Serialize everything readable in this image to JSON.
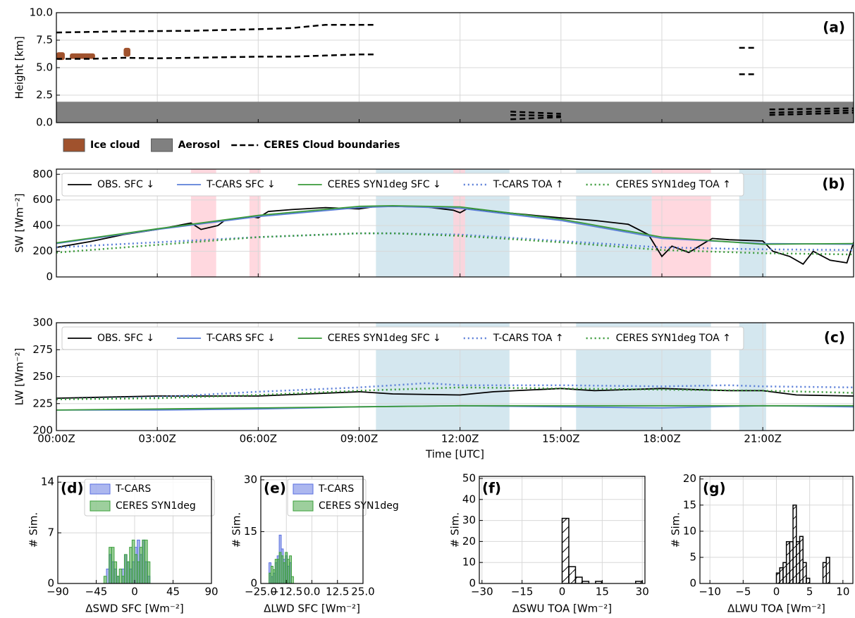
{
  "chart_data": [
    {
      "type": "profile",
      "panel_label": "(a)",
      "ylabel": "Height [km]",
      "xlim": [
        0,
        23.7
      ],
      "xticks": [
        0,
        3,
        6,
        9,
        12,
        15,
        18,
        21
      ],
      "ylim": [
        0,
        10
      ],
      "yticks": [
        {
          "value": 0,
          "label": "0.0"
        },
        2.5,
        {
          "value": 5,
          "label": "5.0"
        },
        7.5,
        {
          "value": 10,
          "label": "10.0"
        }
      ],
      "grid": true,
      "legend": [
        {
          "name": "Ice cloud",
          "color": "#a0522d"
        },
        {
          "name": "Aerosol",
          "color": "#808080"
        },
        {
          "name": "CERES Cloud boundaries",
          "color": "#000000"
        }
      ],
      "ice_cloud": [
        {
          "x": [
            0,
            0.25
          ],
          "y": [
            5.7,
            6.4
          ]
        },
        {
          "x": [
            0.4,
            1.15
          ],
          "y": [
            5.8,
            6.3
          ]
        },
        {
          "x": [
            2.0,
            2.2
          ],
          "y": [
            6.0,
            6.8
          ]
        }
      ],
      "aerosol": {
        "x": [
          0,
          23.7
        ],
        "y": [
          0,
          1.9
        ]
      },
      "boundaries": [
        {
          "x": [
            0,
            2,
            4,
            6,
            7,
            8,
            9,
            9.5
          ],
          "values": [
            8.2,
            8.3,
            8.35,
            8.5,
            8.6,
            8.9,
            8.9,
            8.9
          ]
        },
        {
          "x": [
            0,
            1,
            2,
            3,
            4,
            5,
            6,
            7,
            8,
            9,
            9.5
          ],
          "values": [
            5.8,
            5.8,
            5.9,
            5.85,
            5.9,
            5.95,
            6.0,
            6.0,
            6.1,
            6.2,
            6.2
          ]
        },
        {
          "x": [
            20.3,
            20.8
          ],
          "values": [
            6.8,
            6.8
          ]
        },
        {
          "x": [
            20.3,
            20.8
          ],
          "values": [
            4.4,
            4.4
          ]
        },
        {
          "x": [
            13.5,
            15
          ],
          "values": [
            1.0,
            0.8
          ]
        },
        {
          "x": [
            13.5,
            15
          ],
          "values": [
            0.7,
            0.6
          ]
        },
        {
          "x": [
            13.5,
            15
          ],
          "values": [
            0.3,
            0.5
          ]
        },
        {
          "x": [
            21.2,
            23.7
          ],
          "values": [
            1.2,
            1.3
          ]
        },
        {
          "x": [
            21.2,
            23.7
          ],
          "values": [
            0.9,
            1.1
          ]
        },
        {
          "x": [
            21.2,
            23.7
          ],
          "values": [
            0.7,
            0.9
          ]
        }
      ]
    },
    {
      "type": "line",
      "panel_label": "(b)",
      "ylabel": "SW [Wm⁻²]",
      "xlim": [
        0,
        23.7
      ],
      "xticks": [
        0,
        3,
        6,
        9,
        12,
        15,
        18,
        21
      ],
      "ylim": [
        0,
        840
      ],
      "yticks": [
        0,
        200,
        400,
        600,
        800
      ],
      "grid": true,
      "legend": "upper left",
      "shaded": [
        {
          "x": [
            4.0,
            4.75
          ],
          "color": "#ffd1d9"
        },
        {
          "x": [
            5.74,
            6.07
          ],
          "color": "#ffd1d9"
        },
        {
          "x": [
            9.5,
            13.47
          ],
          "color": "#cde3ec"
        },
        {
          "x": [
            11.8,
            12.15
          ],
          "color": "#ffd1d9"
        },
        {
          "x": [
            15.45,
            17.7
          ],
          "color": "#cde3ec"
        },
        {
          "x": [
            17.7,
            19.46
          ],
          "color": "#ffd1d9"
        },
        {
          "x": [
            20.3,
            21.1
          ],
          "color": "#cde3ec"
        }
      ],
      "series": [
        {
          "name": "OBS. SFC ↓",
          "color": "#000000",
          "style": "solid",
          "x": [
            0,
            1,
            2,
            3,
            4,
            4.3,
            4.8,
            5,
            5.8,
            6,
            6.3,
            7,
            8,
            9,
            9.5,
            10,
            11,
            11.8,
            12,
            12.2,
            13,
            14,
            15,
            16,
            17,
            17.6,
            18,
            18.3,
            18.8,
            19.3,
            19.5,
            20,
            21,
            21.3,
            21.8,
            22.2,
            22.5,
            23,
            23.5,
            23.7
          ],
          "values": [
            230,
            275,
            330,
            370,
            420,
            370,
            400,
            440,
            470,
            460,
            510,
            525,
            540,
            530,
            550,
            550,
            545,
            520,
            500,
            530,
            510,
            485,
            460,
            440,
            410,
            330,
            160,
            240,
            190,
            270,
            300,
            290,
            280,
            200,
            160,
            100,
            200,
            130,
            110,
            270
          ]
        },
        {
          "name": "T-CARS SFC ↓",
          "color": "#5b7fd8",
          "style": "solid",
          "x": [
            0,
            3,
            6,
            9,
            10,
            12,
            15,
            18,
            21,
            23.7
          ],
          "values": [
            260,
            370,
            470,
            540,
            550,
            535,
            440,
            300,
            260,
            255
          ]
        },
        {
          "name": "CERES SYN1deg SFC ↓",
          "color": "#3a9a3a",
          "style": "solid",
          "x": [
            0,
            3,
            6,
            9,
            10,
            12,
            15,
            18,
            21,
            23.7
          ],
          "values": [
            265,
            375,
            480,
            550,
            555,
            545,
            450,
            310,
            255,
            260
          ]
        },
        {
          "name": "T-CARS TOA ↑",
          "color": "#5b7fd8",
          "style": "dotted",
          "x": [
            0,
            3,
            6,
            9,
            10,
            12,
            15,
            18,
            21,
            23.7
          ],
          "values": [
            230,
            270,
            310,
            340,
            340,
            330,
            280,
            230,
            215,
            210
          ]
        },
        {
          "name": "CERES SYN1deg TOA ↑",
          "color": "#3a9a3a",
          "style": "dotted",
          "x": [
            0,
            3,
            6,
            9,
            10,
            12,
            15,
            18,
            21,
            23.7
          ],
          "values": [
            190,
            250,
            310,
            340,
            340,
            320,
            270,
            210,
            185,
            175
          ]
        }
      ]
    },
    {
      "type": "line",
      "panel_label": "(c)",
      "ylabel": "LW [Wm⁻²]",
      "xlabel": "Time [UTC]",
      "xlim": [
        0,
        23.7
      ],
      "xticks": [
        {
          "value": 0,
          "label": "00:00Z"
        },
        {
          "value": 3,
          "label": "03:00Z"
        },
        {
          "value": 6,
          "label": "06:00Z"
        },
        {
          "value": 9,
          "label": "09:00Z"
        },
        {
          "value": 12,
          "label": "12:00Z"
        },
        {
          "value": 15,
          "label": "15:00Z"
        },
        {
          "value": 18,
          "label": "18:00Z"
        },
        {
          "value": 21,
          "label": "21:00Z"
        }
      ],
      "ylim": [
        200,
        300
      ],
      "yticks": [
        200,
        225,
        250,
        275,
        300
      ],
      "grid": true,
      "legend": "upper left",
      "shaded": [
        {
          "x": [
            9.5,
            13.47
          ],
          "color": "#cde3ec"
        },
        {
          "x": [
            15.45,
            19.46
          ],
          "color": "#cde3ec"
        },
        {
          "x": [
            20.3,
            21.1
          ],
          "color": "#cde3ec"
        }
      ],
      "series": [
        {
          "name": "OBS. SFC ↓",
          "color": "#000000",
          "style": "solid",
          "x": [
            0,
            3,
            6,
            9,
            10,
            12,
            13,
            15,
            16,
            18,
            20,
            21,
            22,
            23.7
          ],
          "values": [
            230,
            232,
            232,
            236,
            234,
            233,
            236,
            239,
            237,
            239,
            237,
            237,
            233,
            232
          ]
        },
        {
          "name": "T-CARS SFC ↓",
          "color": "#5b7fd8",
          "style": "solid",
          "x": [
            0,
            3,
            6,
            9,
            12,
            15,
            18,
            21,
            23.7
          ],
          "values": [
            219,
            219,
            220,
            222,
            223,
            222,
            221,
            223,
            222
          ]
        },
        {
          "name": "CERES SYN1deg SFC ↓",
          "color": "#3a9a3a",
          "style": "solid",
          "x": [
            0,
            3,
            6,
            9,
            12,
            15,
            18,
            21,
            23.7
          ],
          "values": [
            219,
            220,
            221,
            222,
            223,
            223,
            223,
            223,
            223
          ]
        },
        {
          "name": "T-CARS TOA ↑",
          "color": "#5b7fd8",
          "style": "dotted",
          "x": [
            0,
            3,
            6,
            9,
            11,
            12,
            15,
            18,
            20,
            21,
            23.7
          ],
          "values": [
            229,
            231,
            236,
            240,
            244,
            242,
            242,
            241,
            242,
            241,
            240
          ]
        },
        {
          "name": "CERES SYN1deg TOA ↑",
          "color": "#3a9a3a",
          "style": "dotted",
          "x": [
            0,
            3,
            6,
            9,
            11,
            12,
            15,
            18,
            21,
            23.7
          ],
          "values": [
            229,
            230,
            233,
            237,
            239,
            240,
            239,
            238,
            237,
            235
          ]
        }
      ]
    },
    {
      "type": "histogram",
      "panel_label": "(d)",
      "ylabel": "# Sim.",
      "xlabel": "ΔSWD SFC [Wm⁻²]",
      "xlim": [
        -90,
        90
      ],
      "xticks": [
        {
          "value": -90,
          "label": "−90"
        },
        {
          "value": -45,
          "label": "−45"
        },
        0,
        45,
        90
      ],
      "ylim": [
        0,
        14.8
      ],
      "yticks": [
        0,
        7,
        14
      ],
      "grid": true,
      "legend": "upper center",
      "bins": [
        -36,
        -33,
        -30,
        -27,
        -24,
        -21,
        -18,
        -15,
        -12,
        -9,
        -6,
        -3,
        0,
        3,
        6,
        9,
        12,
        15,
        18,
        21
      ],
      "series": [
        {
          "name": "T-CARS",
          "color": "#5a6fe0",
          "values": [
            0,
            2,
            4,
            3,
            2,
            1,
            0,
            2,
            4,
            3,
            2,
            3,
            5,
            6,
            4,
            6,
            3,
            1,
            0
          ]
        },
        {
          "name": "CERES SYN1deg",
          "color": "#3ca03c",
          "values": [
            1,
            0,
            5,
            5,
            3,
            1,
            2,
            1,
            4,
            3,
            5,
            6,
            4,
            3,
            5,
            6,
            6,
            3,
            0
          ]
        }
      ]
    },
    {
      "type": "histogram",
      "panel_label": "(e)",
      "ylabel": "# Sim.",
      "xlabel": "ΔLWD SFC [Wm⁻²]",
      "xlim": [
        -25,
        25
      ],
      "xticks": [
        {
          "value": -25,
          "label": "−25.0"
        },
        {
          "value": -12.5,
          "label": "−12.5"
        },
        {
          "value": 0,
          "label": "0.0"
        },
        12.5,
        {
          "value": 25,
          "label": "25.0"
        }
      ],
      "ylim": [
        0,
        31
      ],
      "yticks": [
        0,
        15,
        30
      ],
      "grid": true,
      "legend": "upper center",
      "bins": [
        -21,
        -20,
        -19,
        -18,
        -17,
        -16,
        -15,
        -14,
        -13,
        -12,
        -11,
        -10,
        -9,
        -8
      ],
      "series": [
        {
          "name": "T-CARS",
          "color": "#5a6fe0",
          "values": [
            6,
            2,
            3,
            6,
            8,
            14,
            10,
            7,
            8,
            5,
            6,
            0,
            0
          ]
        },
        {
          "name": "CERES SYN1deg",
          "color": "#3ca03c",
          "values": [
            3,
            5,
            4,
            7,
            7,
            9,
            8,
            6,
            9,
            7,
            8,
            2,
            0
          ]
        }
      ]
    },
    {
      "type": "histogram",
      "panel_label": "(f)",
      "ylabel": "# Sim.",
      "xlabel": "ΔSWU TOA [Wm⁻²]",
      "xlim": [
        -31,
        31
      ],
      "xticks": [
        {
          "value": -30,
          "label": "−30"
        },
        {
          "value": -15,
          "label": "−15"
        },
        0,
        15,
        30
      ],
      "ylim": [
        0,
        51
      ],
      "yticks": [
        0,
        10,
        20,
        30,
        40,
        50
      ],
      "grid": true,
      "hatch": true,
      "color": "#000000",
      "bins": [
        0,
        2.5,
        5,
        7.5,
        10,
        12.5,
        15,
        17.5,
        20,
        22.5,
        25,
        27.5,
        30
      ],
      "values": [
        31,
        8,
        3,
        1,
        0,
        1,
        0,
        0,
        0,
        0,
        0,
        1
      ]
    },
    {
      "type": "histogram",
      "panel_label": "(g)",
      "ylabel": "# Sim.",
      "xlabel": "ΔLWU TOA [Wm⁻²]",
      "xlim": [
        -11.5,
        11.5
      ],
      "xticks": [
        {
          "value": -10,
          "label": "−10"
        },
        {
          "value": -5,
          "label": "−5"
        },
        0,
        5,
        10
      ],
      "ylim": [
        0,
        20.5
      ],
      "yticks": [
        0,
        5,
        10,
        15,
        20
      ],
      "grid": true,
      "hatch": true,
      "color": "#000000",
      "bins": [
        0,
        0.5,
        1,
        1.5,
        2,
        2.5,
        3,
        3.5,
        4,
        4.5,
        5,
        5.5,
        6,
        6.5,
        7,
        7.5,
        8
      ],
      "values": [
        2,
        3,
        4,
        8,
        8,
        15,
        8,
        9,
        4,
        1,
        0,
        0,
        0,
        0,
        4,
        5
      ]
    }
  ]
}
